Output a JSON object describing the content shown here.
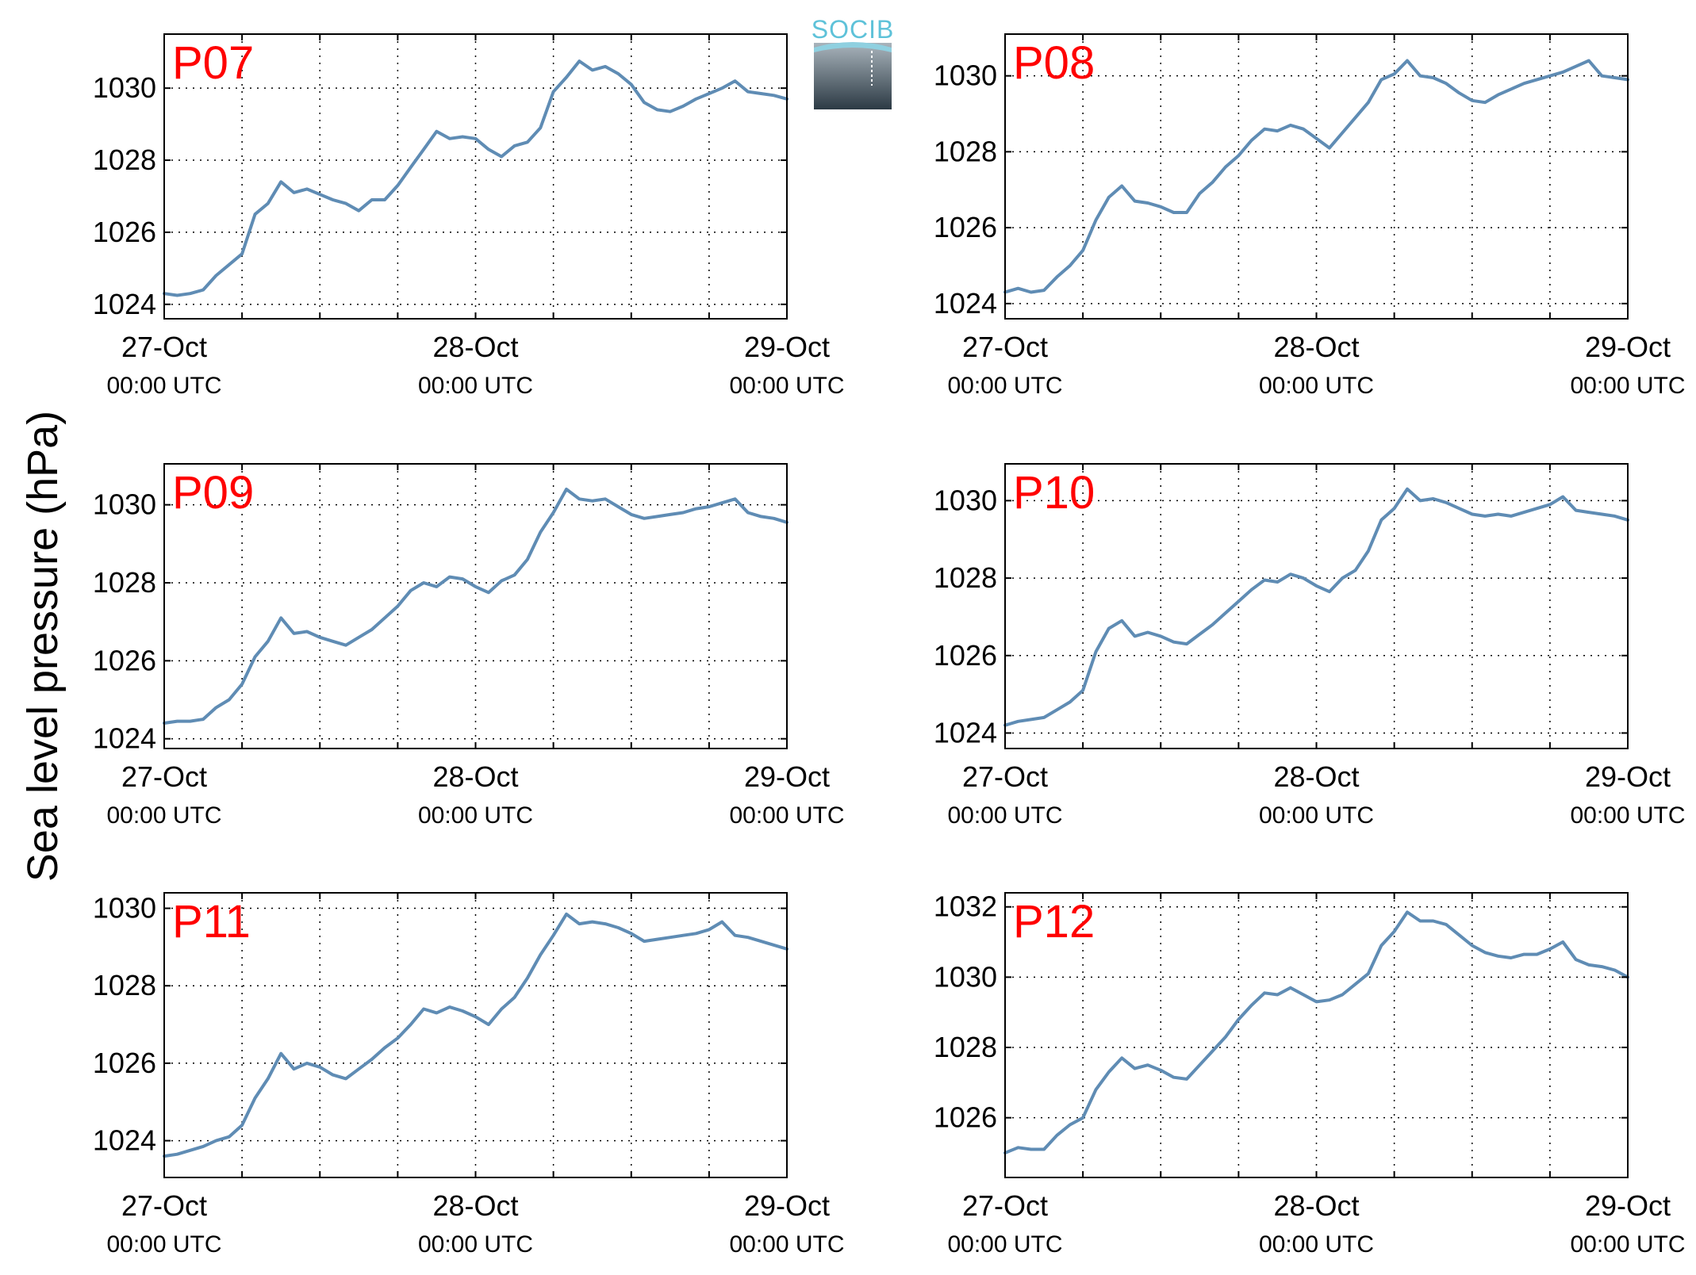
{
  "colors": {
    "line": "#5f8cb4",
    "title": "#ff0000",
    "logo_text": "#5ec2d9"
  },
  "logo": {
    "text": "SOCIB",
    "icon": "socib-logo"
  },
  "figure": {
    "ylabel": "Sea level pressure (hPa)"
  },
  "chart_data": [
    {
      "type": "line",
      "title": "P07",
      "xlabel": "",
      "ylabel": "",
      "xlim": [
        "2014-10-27 00:00",
        "2014-10-29 00:00"
      ],
      "ylim": [
        1023.6,
        1031.5
      ],
      "yticks": [
        1024,
        1026,
        1028,
        1030
      ],
      "xticks": [
        {
          "label": "27-Oct",
          "sub": "00:00 UTC"
        },
        {
          "label": "28-Oct",
          "sub": "00:00 UTC"
        },
        {
          "label": "29-Oct",
          "sub": "00:00 UTC"
        }
      ],
      "grid": true,
      "series": [
        {
          "x_hours": [
            0,
            1,
            2,
            3,
            4,
            5,
            6,
            7,
            8,
            9,
            10,
            11,
            12,
            13,
            14,
            15,
            16,
            17,
            18,
            19,
            20,
            21,
            22,
            23,
            24,
            25,
            26,
            27,
            28,
            29,
            30,
            31,
            32,
            33,
            34,
            35,
            36,
            37,
            38,
            39,
            40,
            41,
            42,
            43,
            44,
            45,
            46,
            47,
            48
          ],
          "values": [
            1024.3,
            1024.25,
            1024.3,
            1024.4,
            1024.8,
            1025.1,
            1025.4,
            1026.5,
            1026.8,
            1027.4,
            1027.1,
            1027.2,
            1027.05,
            1026.9,
            1026.8,
            1026.6,
            1026.9,
            1026.9,
            1027.3,
            1027.8,
            1028.3,
            1028.8,
            1028.6,
            1028.65,
            1028.6,
            1028.3,
            1028.1,
            1028.4,
            1028.5,
            1028.9,
            1029.9,
            1030.3,
            1030.75,
            1030.5,
            1030.6,
            1030.4,
            1030.1,
            1029.6,
            1029.4,
            1029.35,
            1029.5,
            1029.7,
            1029.85,
            1030.0,
            1030.2,
            1029.9,
            1029.85,
            1029.8,
            1029.7
          ]
        }
      ]
    },
    {
      "type": "line",
      "title": "P08",
      "xlabel": "",
      "ylabel": "",
      "xlim": [
        "2014-10-27 00:00",
        "2014-10-29 00:00"
      ],
      "ylim": [
        1023.6,
        1031.1
      ],
      "yticks": [
        1024,
        1026,
        1028,
        1030
      ],
      "xticks": [
        {
          "label": "27-Oct",
          "sub": "00:00 UTC"
        },
        {
          "label": "28-Oct",
          "sub": "00:00 UTC"
        },
        {
          "label": "29-Oct",
          "sub": "00:00 UTC"
        }
      ],
      "grid": true,
      "series": [
        {
          "x_hours": [
            0,
            1,
            2,
            3,
            4,
            5,
            6,
            7,
            8,
            9,
            10,
            11,
            12,
            13,
            14,
            15,
            16,
            17,
            18,
            19,
            20,
            21,
            22,
            23,
            24,
            25,
            26,
            27,
            28,
            29,
            30,
            31,
            32,
            33,
            34,
            35,
            36,
            37,
            38,
            39,
            40,
            41,
            42,
            43,
            44,
            45,
            46,
            47,
            48
          ],
          "values": [
            1024.3,
            1024.4,
            1024.3,
            1024.35,
            1024.7,
            1025.0,
            1025.4,
            1026.2,
            1026.8,
            1027.1,
            1026.7,
            1026.65,
            1026.55,
            1026.4,
            1026.4,
            1026.9,
            1027.2,
            1027.6,
            1027.9,
            1028.3,
            1028.6,
            1028.55,
            1028.7,
            1028.6,
            1028.35,
            1028.1,
            1028.5,
            1028.9,
            1029.3,
            1029.9,
            1030.05,
            1030.4,
            1030.0,
            1029.95,
            1029.8,
            1029.55,
            1029.35,
            1029.3,
            1029.5,
            1029.65,
            1029.8,
            1029.9,
            1030.0,
            1030.1,
            1030.25,
            1030.4,
            1030.0,
            1029.95,
            1029.9
          ]
        }
      ]
    },
    {
      "type": "line",
      "title": "P09",
      "xlabel": "",
      "ylabel": "",
      "xlim": [
        "2014-10-27 00:00",
        "2014-10-29 00:00"
      ],
      "ylim": [
        1023.75,
        1031.05
      ],
      "yticks": [
        1024,
        1026,
        1028,
        1030
      ],
      "xticks": [
        {
          "label": "27-Oct",
          "sub": "00:00 UTC"
        },
        {
          "label": "28-Oct",
          "sub": "00:00 UTC"
        },
        {
          "label": "29-Oct",
          "sub": "00:00 UTC"
        }
      ],
      "grid": true,
      "series": [
        {
          "x_hours": [
            0,
            1,
            2,
            3,
            4,
            5,
            6,
            7,
            8,
            9,
            10,
            11,
            12,
            13,
            14,
            15,
            16,
            17,
            18,
            19,
            20,
            21,
            22,
            23,
            24,
            25,
            26,
            27,
            28,
            29,
            30,
            31,
            32,
            33,
            34,
            35,
            36,
            37,
            38,
            39,
            40,
            41,
            42,
            43,
            44,
            45,
            46,
            47,
            48
          ],
          "values": [
            1024.4,
            1024.45,
            1024.45,
            1024.5,
            1024.8,
            1025.0,
            1025.4,
            1026.1,
            1026.5,
            1027.1,
            1026.7,
            1026.75,
            1026.6,
            1026.5,
            1026.4,
            1026.6,
            1026.8,
            1027.1,
            1027.4,
            1027.8,
            1028.0,
            1027.9,
            1028.15,
            1028.1,
            1027.9,
            1027.75,
            1028.05,
            1028.2,
            1028.6,
            1029.3,
            1029.8,
            1030.4,
            1030.15,
            1030.1,
            1030.15,
            1029.95,
            1029.75,
            1029.65,
            1029.7,
            1029.75,
            1029.8,
            1029.9,
            1029.95,
            1030.05,
            1030.15,
            1029.8,
            1029.7,
            1029.65,
            1029.55
          ]
        }
      ]
    },
    {
      "type": "line",
      "title": "P10",
      "xlabel": "",
      "ylabel": "",
      "xlim": [
        "2014-10-27 00:00",
        "2014-10-29 00:00"
      ],
      "ylim": [
        1023.6,
        1030.95
      ],
      "yticks": [
        1024,
        1026,
        1028,
        1030
      ],
      "xticks": [
        {
          "label": "27-Oct",
          "sub": "00:00 UTC"
        },
        {
          "label": "28-Oct",
          "sub": "00:00 UTC"
        },
        {
          "label": "29-Oct",
          "sub": "00:00 UTC"
        }
      ],
      "grid": true,
      "series": [
        {
          "x_hours": [
            0,
            1,
            2,
            3,
            4,
            5,
            6,
            7,
            8,
            9,
            10,
            11,
            12,
            13,
            14,
            15,
            16,
            17,
            18,
            19,
            20,
            21,
            22,
            23,
            24,
            25,
            26,
            27,
            28,
            29,
            30,
            31,
            32,
            33,
            34,
            35,
            36,
            37,
            38,
            39,
            40,
            41,
            42,
            43,
            44,
            45,
            46,
            47,
            48
          ],
          "values": [
            1024.2,
            1024.3,
            1024.35,
            1024.4,
            1024.6,
            1024.8,
            1025.1,
            1026.1,
            1026.7,
            1026.9,
            1026.5,
            1026.6,
            1026.5,
            1026.35,
            1026.3,
            1026.55,
            1026.8,
            1027.1,
            1027.4,
            1027.7,
            1027.95,
            1027.9,
            1028.1,
            1028.0,
            1027.8,
            1027.65,
            1028.0,
            1028.2,
            1028.7,
            1029.5,
            1029.8,
            1030.3,
            1030.0,
            1030.05,
            1029.95,
            1029.8,
            1029.65,
            1029.6,
            1029.65,
            1029.6,
            1029.7,
            1029.8,
            1029.9,
            1030.1,
            1029.75,
            1029.7,
            1029.65,
            1029.6,
            1029.5
          ]
        }
      ]
    },
    {
      "type": "line",
      "title": "P11",
      "xlabel": "",
      "ylabel": "",
      "xlim": [
        "2014-10-27 00:00",
        "2014-10-29 00:00"
      ],
      "ylim": [
        1023.05,
        1030.4
      ],
      "yticks": [
        1024,
        1026,
        1028,
        1030
      ],
      "xticks": [
        {
          "label": "27-Oct",
          "sub": "00:00 UTC"
        },
        {
          "label": "28-Oct",
          "sub": "00:00 UTC"
        },
        {
          "label": "29-Oct",
          "sub": "00:00 UTC"
        }
      ],
      "grid": true,
      "series": [
        {
          "x_hours": [
            0,
            1,
            2,
            3,
            4,
            5,
            6,
            7,
            8,
            9,
            10,
            11,
            12,
            13,
            14,
            15,
            16,
            17,
            18,
            19,
            20,
            21,
            22,
            23,
            24,
            25,
            26,
            27,
            28,
            29,
            30,
            31,
            32,
            33,
            34,
            35,
            36,
            37,
            38,
            39,
            40,
            41,
            42,
            43,
            44,
            45,
            46,
            47,
            48
          ],
          "values": [
            1023.6,
            1023.65,
            1023.75,
            1023.85,
            1024.0,
            1024.1,
            1024.4,
            1025.1,
            1025.6,
            1026.25,
            1025.85,
            1026.0,
            1025.9,
            1025.7,
            1025.6,
            1025.85,
            1026.1,
            1026.4,
            1026.65,
            1027.0,
            1027.4,
            1027.3,
            1027.45,
            1027.35,
            1027.2,
            1027.0,
            1027.4,
            1027.7,
            1028.2,
            1028.8,
            1029.3,
            1029.85,
            1029.6,
            1029.65,
            1029.6,
            1029.5,
            1029.35,
            1029.15,
            1029.2,
            1029.25,
            1029.3,
            1029.35,
            1029.45,
            1029.65,
            1029.3,
            1029.25,
            1029.15,
            1029.05,
            1028.95
          ]
        }
      ]
    },
    {
      "type": "line",
      "title": "P12",
      "xlabel": "",
      "ylabel": "",
      "xlim": [
        "2014-10-27 00:00",
        "2014-10-29 00:00"
      ],
      "ylim": [
        1024.3,
        1032.4
      ],
      "yticks": [
        1026,
        1028,
        1030,
        1032
      ],
      "xticks": [
        {
          "label": "27-Oct",
          "sub": "00:00 UTC"
        },
        {
          "label": "28-Oct",
          "sub": "00:00 UTC"
        },
        {
          "label": "29-Oct",
          "sub": "00:00 UTC"
        }
      ],
      "grid": true,
      "series": [
        {
          "x_hours": [
            0,
            1,
            2,
            3,
            4,
            5,
            6,
            7,
            8,
            9,
            10,
            11,
            12,
            13,
            14,
            15,
            16,
            17,
            18,
            19,
            20,
            21,
            22,
            23,
            24,
            25,
            26,
            27,
            28,
            29,
            30,
            31,
            32,
            33,
            34,
            35,
            36,
            37,
            38,
            39,
            40,
            41,
            42,
            43,
            44,
            45,
            46,
            47,
            48
          ],
          "values": [
            1025.0,
            1025.15,
            1025.1,
            1025.1,
            1025.5,
            1025.8,
            1026.0,
            1026.8,
            1027.3,
            1027.7,
            1027.4,
            1027.5,
            1027.35,
            1027.15,
            1027.1,
            1027.5,
            1027.9,
            1028.3,
            1028.8,
            1029.2,
            1029.55,
            1029.5,
            1029.7,
            1029.5,
            1029.3,
            1029.35,
            1029.5,
            1029.8,
            1030.1,
            1030.9,
            1031.3,
            1031.85,
            1031.6,
            1031.6,
            1031.5,
            1031.2,
            1030.9,
            1030.7,
            1030.6,
            1030.55,
            1030.65,
            1030.65,
            1030.8,
            1031.0,
            1030.5,
            1030.35,
            1030.3,
            1030.2,
            1030.0
          ]
        }
      ]
    }
  ]
}
